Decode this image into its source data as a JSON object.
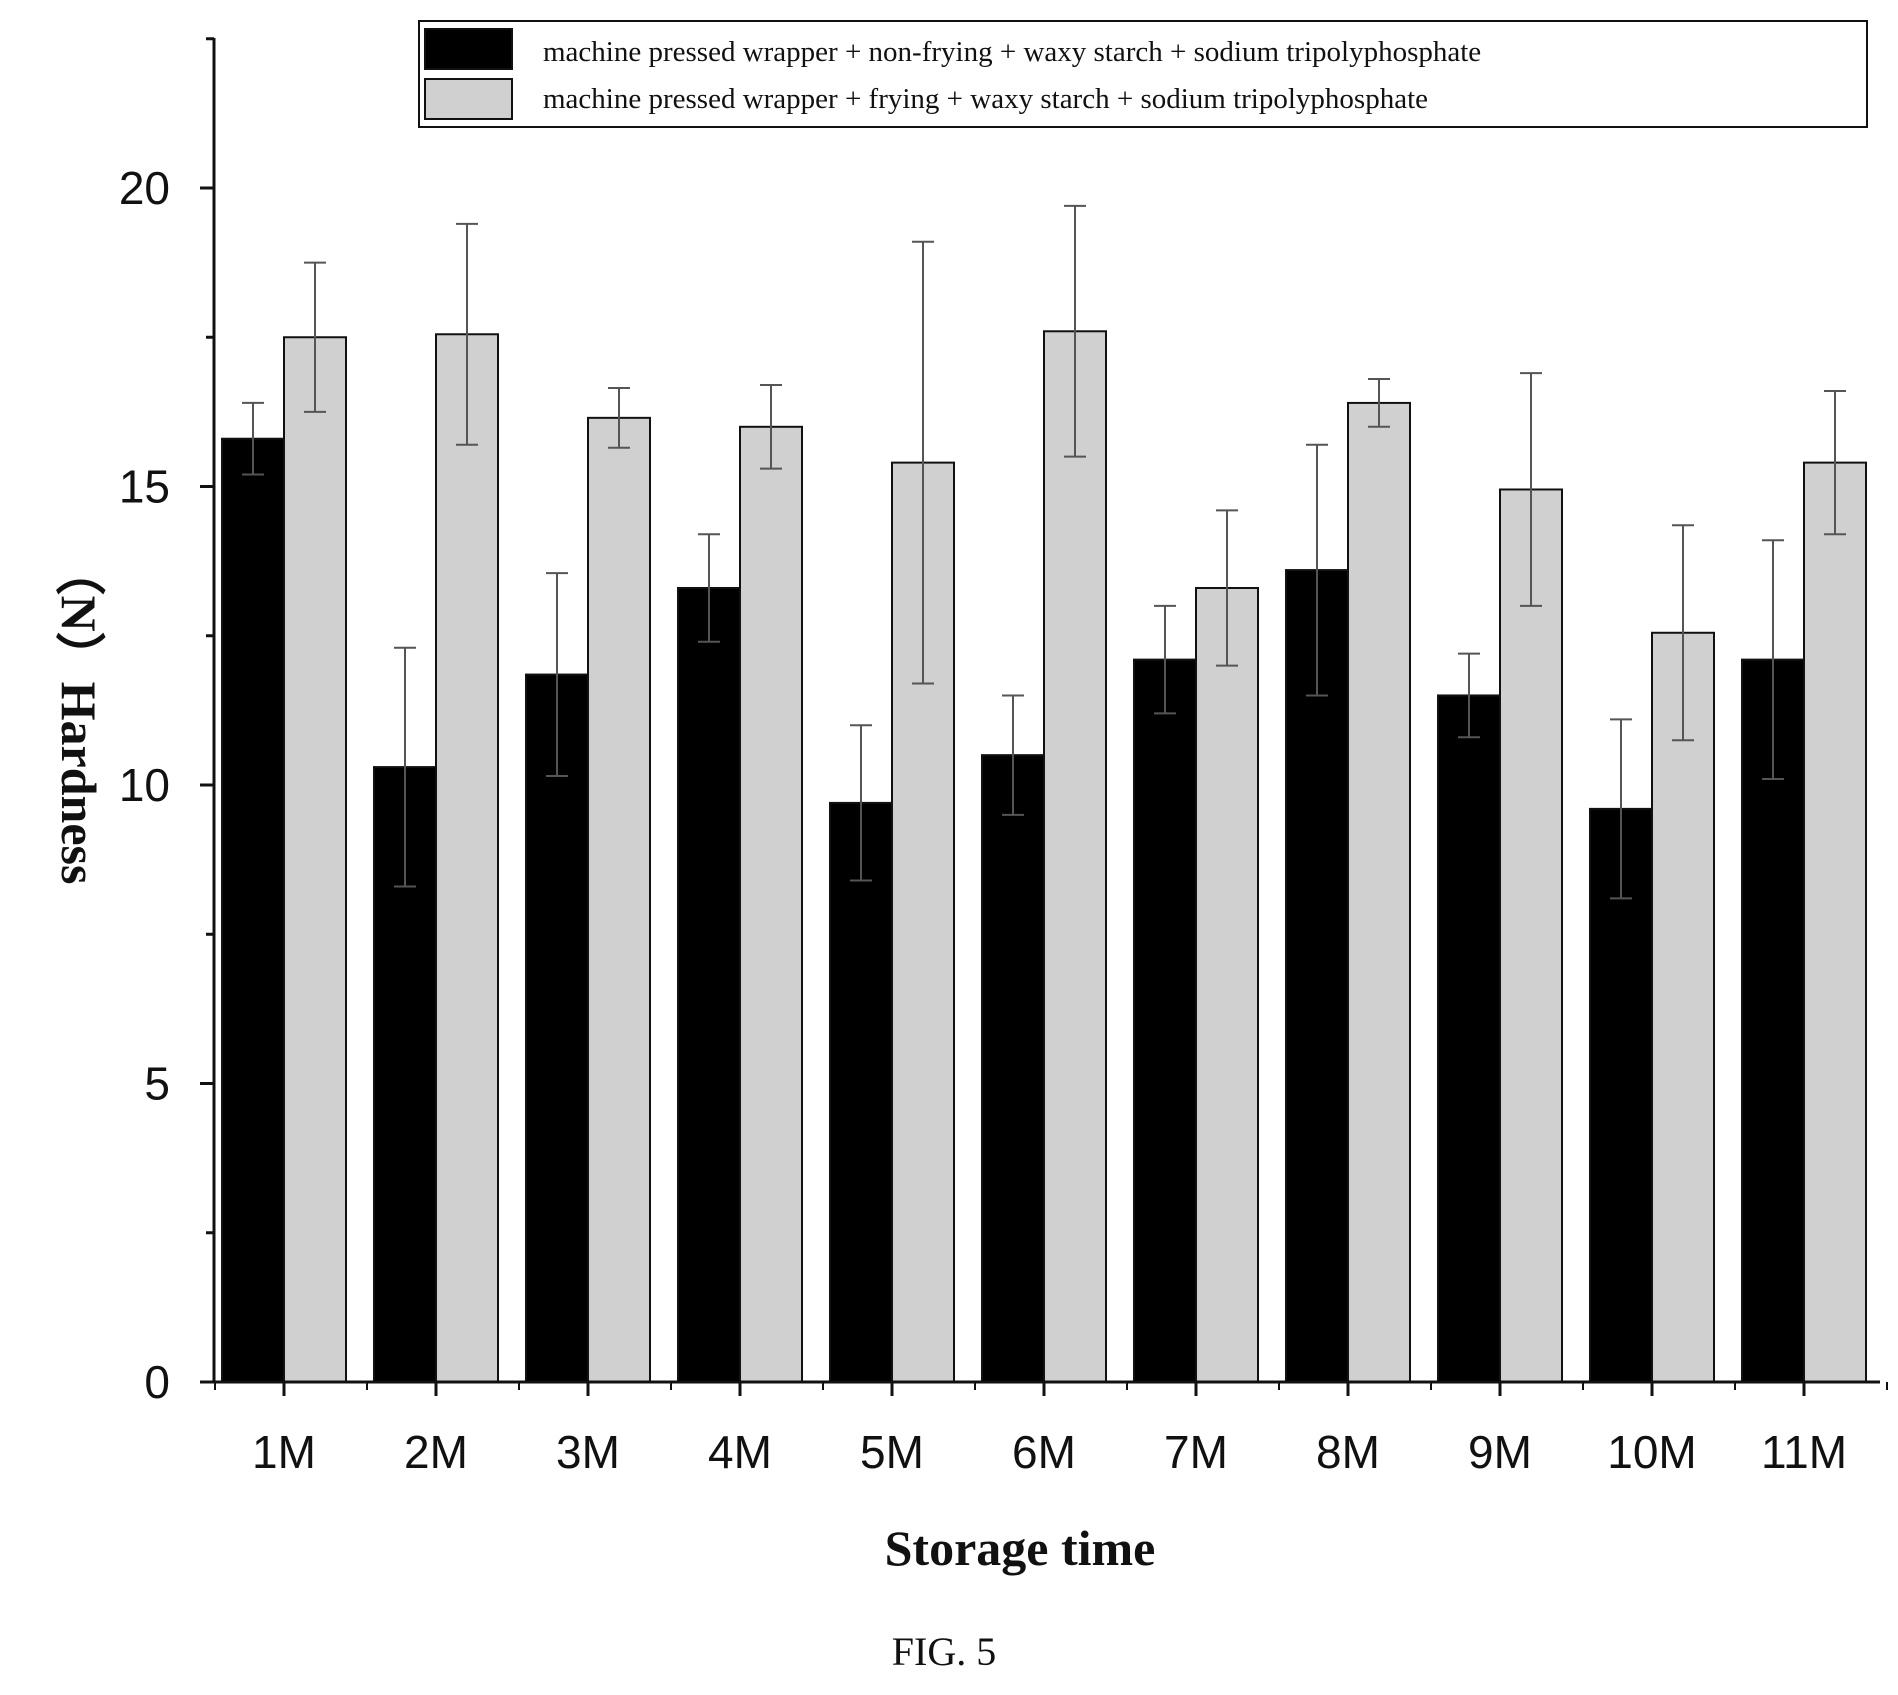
{
  "chart_data": {
    "type": "bar",
    "categories": [
      "1M",
      "2M",
      "3M",
      "4M",
      "5M",
      "6M",
      "7M",
      "8M",
      "9M",
      "10M",
      "11M"
    ],
    "series": [
      {
        "name": "machine pressed wrapper + non-frying + waxy starch + sodium tripolyphosphate",
        "color": "#000000",
        "values": [
          15.8,
          10.3,
          11.85,
          13.3,
          9.7,
          10.5,
          12.1,
          13.6,
          11.5,
          9.6,
          12.1
        ],
        "errors": [
          0.6,
          2.0,
          1.7,
          0.9,
          1.3,
          1.0,
          0.9,
          2.1,
          0.7,
          1.5,
          2.0
        ]
      },
      {
        "name": "machine pressed wrapper + frying + waxy starch + sodium tripolyphosphate",
        "color": "#d0d0d0",
        "values": [
          17.5,
          17.55,
          16.15,
          16.0,
          15.4,
          17.6,
          13.3,
          16.4,
          14.95,
          12.55,
          15.4
        ],
        "errors": [
          1.25,
          1.85,
          0.5,
          0.7,
          3.7,
          2.1,
          1.3,
          0.4,
          1.95,
          1.8,
          1.2
        ]
      }
    ],
    "xlabel": "Storage time",
    "ylabel": "（N）Hardness",
    "ylim": [
      0,
      22.5
    ],
    "yticks": [
      0,
      5,
      10,
      15,
      20
    ],
    "grid": false,
    "legend": "top-right",
    "error_bars": true
  },
  "caption": "FIG. 5"
}
